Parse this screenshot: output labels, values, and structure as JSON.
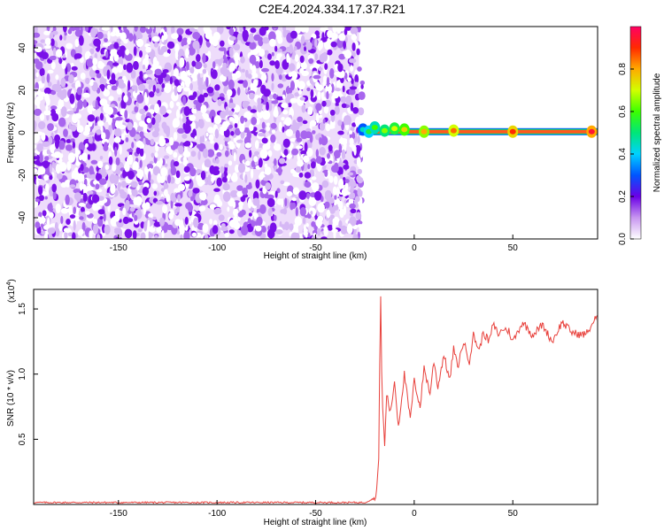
{
  "title": "C2E4.2024.334.17.37.R21",
  "chart_data": [
    {
      "type": "heatmap",
      "xlabel": "Height of straight line (km)",
      "ylabel": "Frequency (Hz)",
      "xlim": [
        -193,
        93
      ],
      "ylim": [
        -50,
        50
      ],
      "xticks": [
        -150,
        -100,
        -50,
        0,
        50
      ],
      "yticks": [
        -40,
        -20,
        0,
        20,
        40
      ],
      "noise_region_x": [
        -193,
        -28
      ],
      "signal_line": {
        "frequency_hz": 0.5,
        "x_start": -28,
        "x_end": 93,
        "points": [
          {
            "x": -26,
            "y": 1.5,
            "amp": 0.45
          },
          {
            "x": -23,
            "y": 0.5,
            "amp": 0.55
          },
          {
            "x": -20,
            "y": 2.5,
            "amp": 0.6
          },
          {
            "x": -15,
            "y": 1.0,
            "amp": 0.65
          },
          {
            "x": -10,
            "y": 2.0,
            "amp": 0.7
          },
          {
            "x": -5,
            "y": 1.5,
            "amp": 0.75
          },
          {
            "x": 5,
            "y": 0.5,
            "amp": 0.8
          },
          {
            "x": 20,
            "y": 1.0,
            "amp": 0.85
          },
          {
            "x": 50,
            "y": 0.5,
            "amp": 0.9
          },
          {
            "x": 90,
            "y": 0.5,
            "amp": 0.95
          }
        ]
      },
      "colorbar": {
        "label": "Normalized spectral amplitude",
        "ticks": [
          0.0,
          0.2,
          0.4,
          0.6,
          0.8
        ],
        "range": [
          0,
          1
        ]
      }
    },
    {
      "type": "line",
      "xlabel": "Height of straight line (km)",
      "ylabel": "SNR (10 * v/v)",
      "y_multiplier_base": "(x10",
      "y_multiplier_exp": "4",
      "y_multiplier_close": ")",
      "xlim": [
        -193,
        93
      ],
      "ylim": [
        0,
        1.65
      ],
      "xticks": [
        -150,
        -100,
        -50,
        0,
        50
      ],
      "yticks": [
        0.5,
        1.0,
        1.5
      ],
      "series": [
        {
          "color": "#e8413c",
          "x": [
            -193,
            -150,
            -100,
            -50,
            -25,
            -20,
            -19,
            -18,
            -17.5,
            -17,
            -16.5,
            -16,
            -15,
            -14,
            -12,
            -10,
            -8,
            -5,
            -2,
            0,
            3,
            5,
            8,
            10,
            12,
            15,
            18,
            20,
            22,
            25,
            28,
            30,
            33,
            35,
            38,
            40,
            43,
            45,
            48,
            50,
            55,
            60,
            65,
            70,
            75,
            80,
            85,
            88,
            90,
            93
          ],
          "y": [
            0.015,
            0.015,
            0.015,
            0.015,
            0.015,
            0.05,
            0.12,
            0.35,
            1.05,
            1.6,
            1.0,
            0.75,
            0.45,
            0.85,
            0.7,
            0.95,
            0.6,
            1.0,
            0.65,
            0.95,
            0.75,
            1.05,
            0.85,
            1.1,
            0.9,
            1.15,
            0.95,
            1.2,
            1.05,
            1.25,
            1.1,
            1.3,
            1.18,
            1.32,
            1.25,
            1.38,
            1.3,
            1.35,
            1.33,
            1.25,
            1.4,
            1.3,
            1.38,
            1.25,
            1.4,
            1.32,
            1.3,
            1.32,
            1.38,
            1.45
          ]
        }
      ]
    }
  ]
}
